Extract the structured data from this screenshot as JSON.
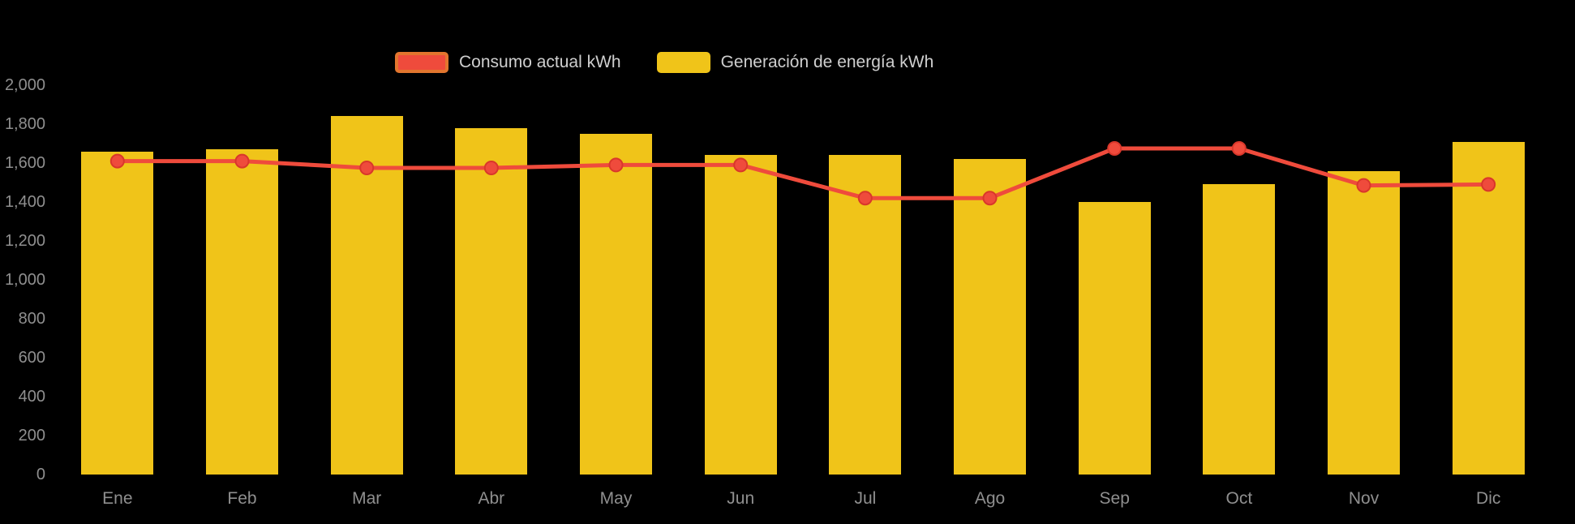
{
  "page": {
    "background": "#000000"
  },
  "legend": {
    "items": [
      {
        "label": "Consumo actual kWh",
        "fill": "#ef4b3c",
        "border": "#e2752e"
      },
      {
        "label": "Generación de energía kWh",
        "fill": "#f0c419",
        "border": "#f0c419"
      }
    ]
  },
  "chart_data": {
    "type": "bar+line",
    "categories": [
      "Ene",
      "Feb",
      "Mar",
      "Abr",
      "May",
      "Jun",
      "Jul",
      "Ago",
      "Sep",
      "Oct",
      "Nov",
      "Dic"
    ],
    "series": [
      {
        "name": "Consumo actual kWh",
        "type": "line",
        "color": "#ef4b3c",
        "values": [
          1610,
          1610,
          1575,
          1575,
          1590,
          1590,
          1420,
          1420,
          1675,
          1675,
          1485,
          1490
        ]
      },
      {
        "name": "Generación de energía kWh",
        "type": "bar",
        "color": "#f0c419",
        "values": [
          1660,
          1670,
          1840,
          1780,
          1750,
          1640,
          1640,
          1620,
          1400,
          1490,
          1560,
          1710
        ]
      }
    ],
    "ylim": [
      0,
      2000
    ],
    "ytick_step": 200,
    "ytick_labels": [
      "0",
      "200",
      "400",
      "600",
      "800",
      "1,000",
      "1,200",
      "1,400",
      "1,600",
      "1,800",
      "2,000"
    ],
    "grid": false,
    "legend_position": "top",
    "title": "",
    "xlabel": "",
    "ylabel": ""
  }
}
